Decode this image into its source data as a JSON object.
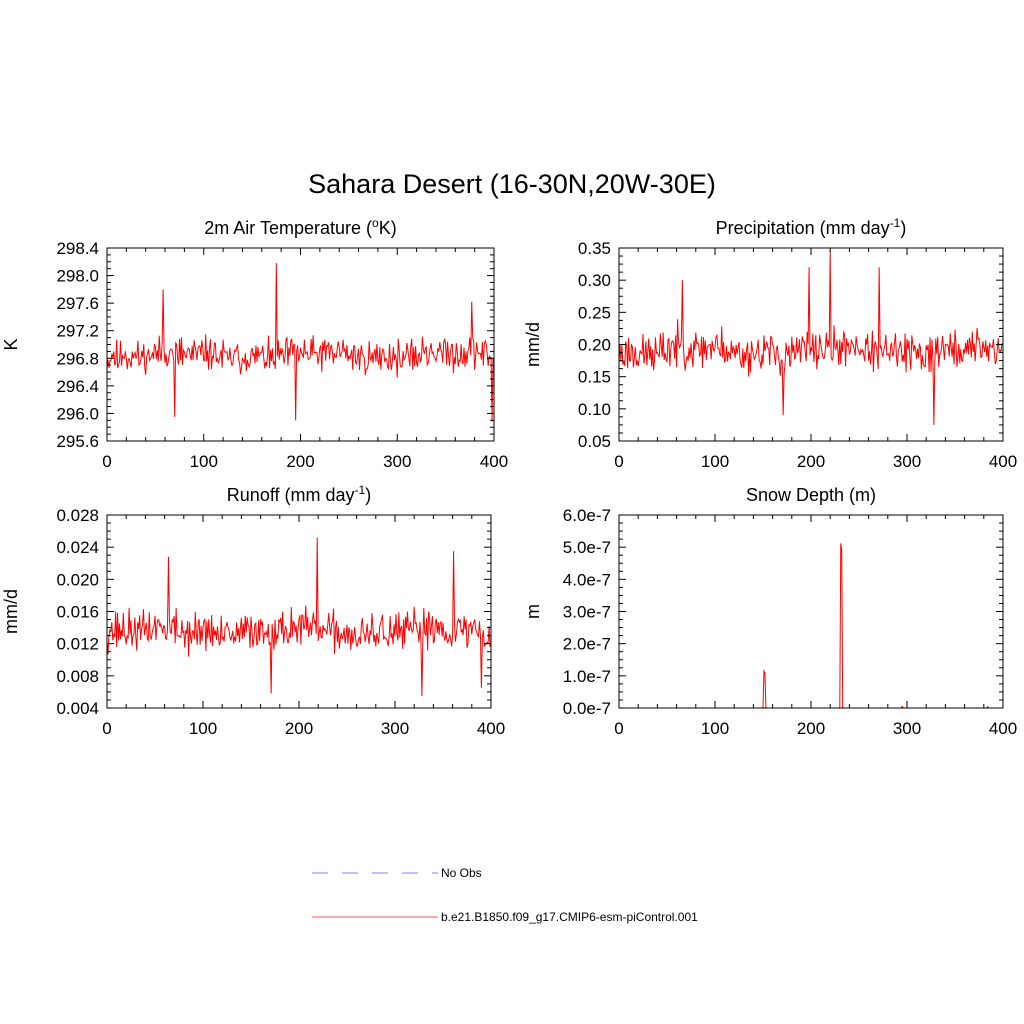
{
  "figure": {
    "title": "Sahara Desert (16-30N,20W-30E)"
  },
  "legend": [
    {
      "label": "No Obs",
      "color": "#9999ff",
      "dash": true
    },
    {
      "label": "b.e21.B1850.f09_g17.CMIP6-esm-piControl.001",
      "color": "#ff7777",
      "dash": false
    }
  ],
  "chart_data": [
    {
      "type": "line",
      "title": "2m Air Temperature (",
      "title_sup": "o",
      "title_after": "K)",
      "ylabel": "K",
      "xlabel": "",
      "xlim": [
        0,
        400
      ],
      "ylim": [
        295.6,
        298.4
      ],
      "xticks": [
        "0",
        "100",
        "200",
        "300",
        "400"
      ],
      "yticks": [
        "295.6",
        "296.0",
        "296.4",
        "296.8",
        "297.2",
        "297.6",
        "298.0",
        "298.4"
      ],
      "series_name": "b.e21.B1850.f09_g17.CMIP6-esm-piControl.001",
      "color": "#ff0000",
      "gen": {
        "n": 400,
        "base": 296.85,
        "amp": 0.32,
        "noise": 0.22,
        "seed": 11,
        "spikes": [
          [
            58,
            297.8
          ],
          [
            175,
            298.18
          ],
          [
            70,
            295.95
          ],
          [
            195,
            295.9
          ],
          [
            398,
            295.88
          ],
          [
            377,
            297.62
          ]
        ]
      }
    },
    {
      "type": "line",
      "title": "Precipitation (mm day",
      "title_sup": "-1",
      "title_after": ")",
      "ylabel": "mm/d",
      "xlabel": "",
      "xlim": [
        0,
        400
      ],
      "ylim": [
        0.05,
        0.35
      ],
      "xticks": [
        "0",
        "100",
        "200",
        "300",
        "400"
      ],
      "yticks": [
        "0.05",
        "0.10",
        "0.15",
        "0.20",
        "0.25",
        "0.30",
        "0.35"
      ],
      "series_name": "b.e21.B1850.f09_g17.CMIP6-esm-piControl.001",
      "color": "#ff0000",
      "gen": {
        "n": 400,
        "base": 0.19,
        "amp": 0.04,
        "noise": 0.028,
        "seed": 23,
        "spikes": [
          [
            198,
            0.32
          ],
          [
            220,
            0.345
          ],
          [
            271,
            0.32
          ],
          [
            328,
            0.075
          ],
          [
            171,
            0.09
          ],
          [
            66,
            0.3
          ]
        ]
      }
    },
    {
      "type": "line",
      "title": "Runoff (mm day",
      "title_sup": "-1",
      "title_after": ")",
      "ylabel": "mm/d",
      "xlabel": "",
      "xlim": [
        0,
        400
      ],
      "ylim": [
        0.004,
        0.028
      ],
      "xticks": [
        "0",
        "100",
        "200",
        "300",
        "400"
      ],
      "yticks": [
        "0.004",
        "0.008",
        "0.012",
        "0.016",
        "0.020",
        "0.024",
        "0.028"
      ],
      "series_name": "b.e21.B1850.f09_g17.CMIP6-esm-piControl.001",
      "color": "#ff0000",
      "gen": {
        "n": 400,
        "base": 0.0135,
        "amp": 0.0032,
        "noise": 0.0024,
        "seed": 37,
        "spikes": [
          [
            219,
            0.0252
          ],
          [
            64,
            0.0228
          ],
          [
            361,
            0.0235
          ],
          [
            171,
            0.0058
          ],
          [
            328,
            0.0055
          ],
          [
            390,
            0.0065
          ]
        ]
      }
    },
    {
      "type": "line",
      "title": "Snow Depth (m)",
      "title_sup": "",
      "title_after": "",
      "ylabel": "m",
      "xlabel": "",
      "xlim": [
        0,
        400
      ],
      "ylim": [
        0,
        6e-07
      ],
      "xticks": [
        "0",
        "100",
        "200",
        "300",
        "400"
      ],
      "yticks": [
        "0.0e-7",
        "1.0e-7",
        "2.0e-7",
        "3.0e-7",
        "4.0e-7",
        "5.0e-7",
        "6.0e-7"
      ],
      "series_name": "b.e21.B1850.f09_g17.CMIP6-esm-piControl.001",
      "color": "#ff0000",
      "x": [
        0,
        148,
        150,
        151,
        152,
        153,
        154,
        229,
        230,
        231,
        232,
        233,
        234,
        294,
        295,
        296,
        383,
        384,
        385,
        400
      ],
      "y": [
        0,
        0,
        2e-09,
        1.15e-07,
        1.1e-07,
        3e-09,
        0,
        0,
        2e-09,
        5.12e-07,
        4.9e-07,
        3e-09,
        0,
        0,
        5e-09,
        0,
        0,
        4e-09,
        0,
        0
      ]
    }
  ]
}
